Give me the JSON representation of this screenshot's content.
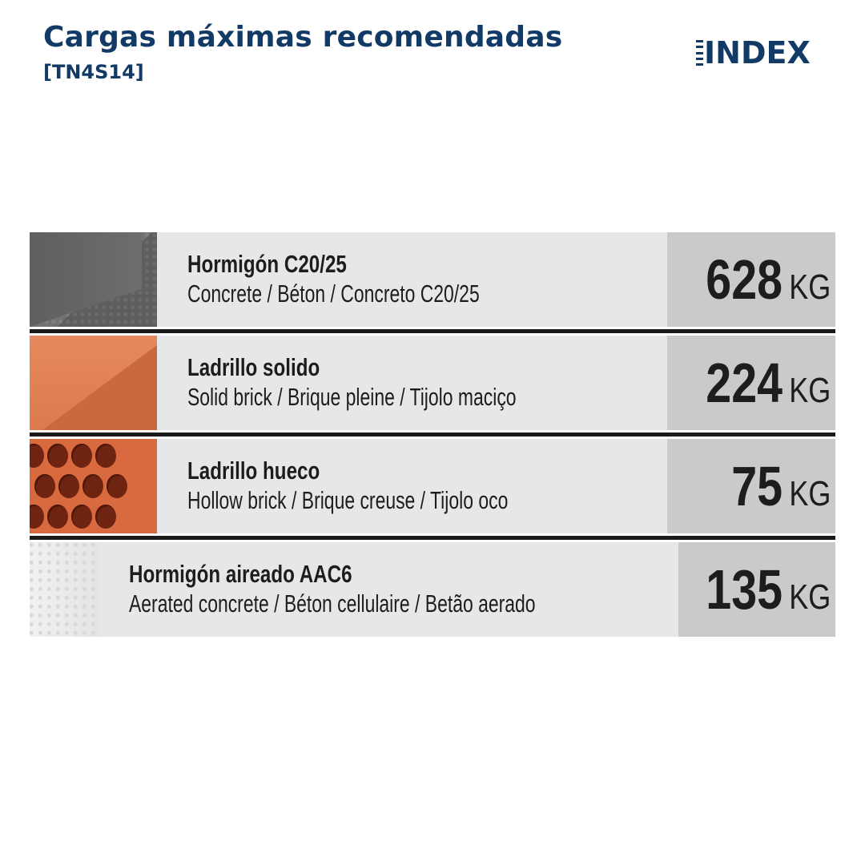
{
  "header": {
    "title": "Cargas máximas recomendadas",
    "code": "[TN4S14]"
  },
  "logo": {
    "text": "INDEX"
  },
  "colors": {
    "brand": "#123a66",
    "row_bg": "#e6e7e8",
    "value_bg": "#c9cacb"
  },
  "table": {
    "unit": "KG",
    "rows": [
      {
        "material_icon": "concrete-swatch",
        "name": "Hormigón  C20/25",
        "description": "Concrete / Béton / Concreto C20/25",
        "value": "628"
      },
      {
        "material_icon": "solid-brick-swatch",
        "name": "Ladrillo solido",
        "description": "Solid brick / Brique pleine / Tijolo maciço",
        "value": "224"
      },
      {
        "material_icon": "hollow-brick-swatch",
        "name": "Ladrillo hueco",
        "description": "Hollow brick / Brique creuse / Tijolo oco",
        "value": "75"
      },
      {
        "material_icon": "aerated-concrete-swatch",
        "name": "Hormigón aireado AAC6",
        "description": "Aerated concrete / Béton cellulaire / Betão aerado",
        "value": "135"
      }
    ]
  }
}
